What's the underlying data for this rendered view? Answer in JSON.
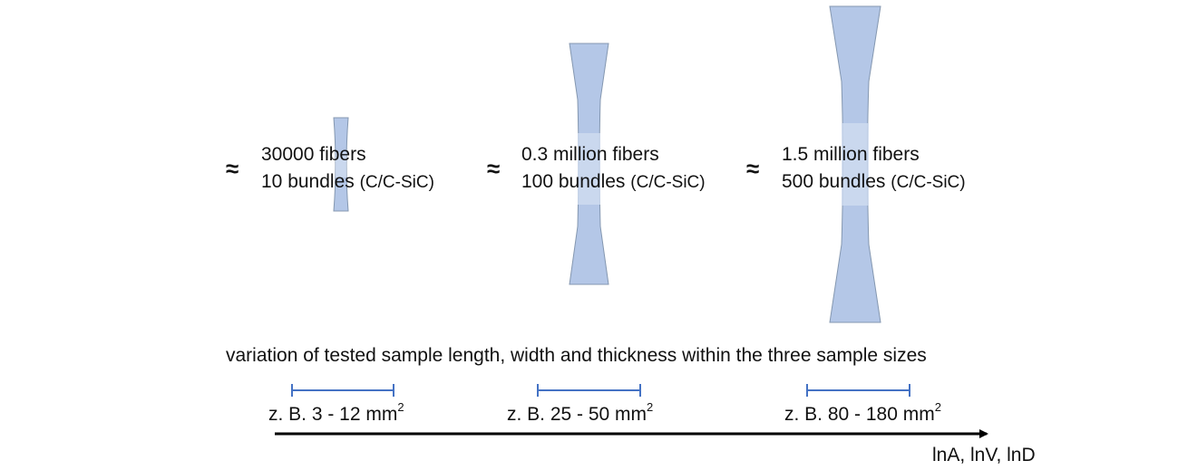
{
  "samples": [
    {
      "approx_symbol": "≈",
      "fibers": "30000 fibers",
      "bundles": "10 bundles",
      "material": "(C/C-SiC)",
      "range_text": "z. B. 3 - 12 mm",
      "range_unit_power": "2"
    },
    {
      "approx_symbol": "≈",
      "fibers": "0.3 million fibers",
      "bundles": "100 bundles",
      "material": "(C/C-SiC)",
      "range_text": "z. B. 25 - 50 mm",
      "range_unit_power": "2"
    },
    {
      "approx_symbol": "≈",
      "fibers": "1.5 million fibers",
      "bundles": "500 bundles",
      "material": "(C/C-SiC)",
      "range_text": "z. B. 80 - 180 mm",
      "range_unit_power": "2"
    }
  ],
  "variation_caption": "variation of tested sample length, width and thickness within the three sample sizes",
  "axis_label": "lnA, lnV, lnD",
  "colors": {
    "specimen_fill": "#b4c7e7",
    "specimen_highlight": "#d0dcf0",
    "specimen_stroke": "#8497b0",
    "range_bar": "#4472c4",
    "axis": "#000000"
  }
}
